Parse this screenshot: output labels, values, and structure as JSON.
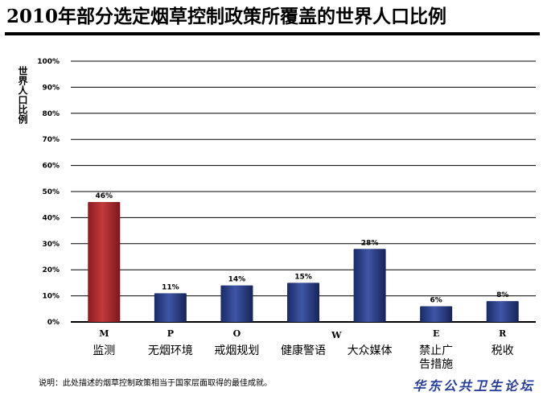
{
  "header": {
    "title": "2010年部分选定烟草控制政策所覆盖的世界人口比例"
  },
  "footer": {
    "note": "说明：此处描述的烟草控制政策相当于国家层面取得的最佳成就。",
    "watermark": "华东公共卫生论坛"
  },
  "colors": {
    "highlight_bar": "#a8252a",
    "bar": "#24357a"
  },
  "chart_data": {
    "type": "bar",
    "title": "2010年部分选定烟草控制政策所覆盖的世界人口比例",
    "ylabel": "世界人口比例",
    "xlabel": "",
    "ylim": [
      0,
      100
    ],
    "yticks": [
      "0%",
      "10%",
      "20%",
      "30%",
      "40%",
      "50%",
      "60%",
      "70%",
      "80%",
      "90%",
      "100%"
    ],
    "grid": true,
    "categories": [
      "监测",
      "无烟环境",
      "戒烟规划",
      "健康警语",
      "大众媒体",
      "禁止广告措施",
      "税收"
    ],
    "category_lines": [
      [
        "监测"
      ],
      [
        "无烟环境"
      ],
      [
        "戒烟规划"
      ],
      [
        "健康警语"
      ],
      [
        "大众媒体"
      ],
      [
        "禁止广",
        "告措施"
      ],
      [
        "税收"
      ]
    ],
    "mpower_letters": [
      "M",
      "P",
      "O",
      "",
      "",
      "E",
      "R"
    ],
    "group_letter_w": "W",
    "values": [
      46,
      11,
      14,
      15,
      28,
      6,
      8
    ],
    "data_labels": [
      "46%",
      "11%",
      "14%",
      "15%",
      "28%",
      "6%",
      "8%"
    ],
    "highlight_index": 0
  }
}
